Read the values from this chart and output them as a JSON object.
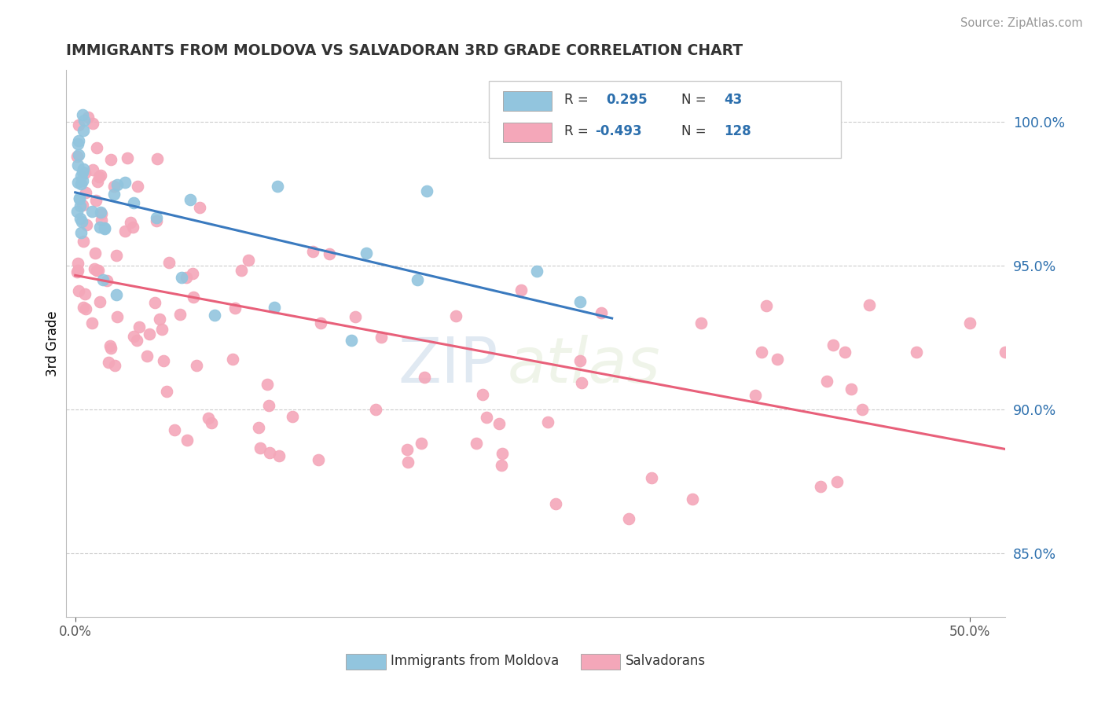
{
  "title": "IMMIGRANTS FROM MOLDOVA VS SALVADORAN 3RD GRADE CORRELATION CHART",
  "source": "Source: ZipAtlas.com",
  "ylabel": "3rd Grade",
  "y_ticks": [
    0.85,
    0.9,
    0.95,
    1.0
  ],
  "y_tick_labels": [
    "85.0%",
    "90.0%",
    "95.0%",
    "100.0%"
  ],
  "x_ticks": [
    0.0,
    0.5
  ],
  "x_tick_labels": [
    "0.0%",
    "50.0%"
  ],
  "xlim": [
    -0.005,
    0.52
  ],
  "ylim": [
    0.828,
    1.018
  ],
  "blue_R": 0.295,
  "blue_N": 43,
  "pink_R": -0.493,
  "pink_N": 128,
  "blue_color": "#92c5de",
  "pink_color": "#f4a7b9",
  "blue_line_color": "#3a7abf",
  "pink_line_color": "#e8607a",
  "watermark_zip": "ZIP",
  "watermark_atlas": "atlas",
  "legend_blue_label": "R =  0.295   N =  43",
  "legend_pink_label": "R = -0.493   N = 128",
  "bottom_label1": "Immigrants from Moldova",
  "bottom_label2": "Salvadorans"
}
